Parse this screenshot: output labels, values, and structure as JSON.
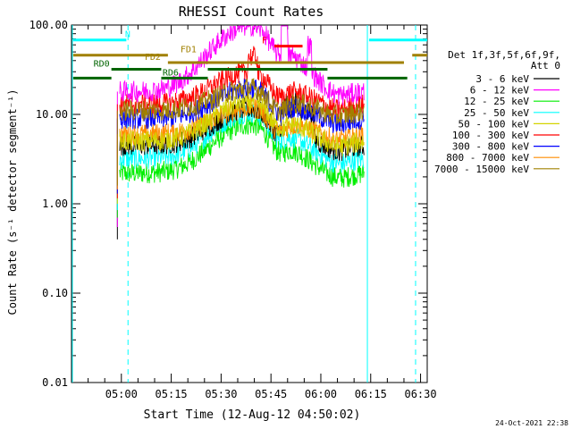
{
  "chart_data": {
    "type": "line",
    "title": "RHESSI Count Rates",
    "xlabel": "Start Time (12-Aug-12 04:50:02)",
    "ylabel": "Count Rate (s⁻¹ detector segment⁻¹)",
    "x_tick_labels": [
      "05:00",
      "05:15",
      "05:30",
      "05:45",
      "06:00",
      "06:15",
      "06:30"
    ],
    "x_tick_minutes": [
      0,
      15,
      30,
      45,
      60,
      75,
      90
    ],
    "y_tick_labels": [
      "0.01",
      "0.10",
      "1.00",
      "10.00",
      "100.00"
    ],
    "ylim": [
      0.01,
      100
    ],
    "y_scale": "log",
    "xlim_minutes": [
      -15.0,
      92.0
    ],
    "legend_title": "Det 1f,3f,5f,6f,9f,\nAtt 0",
    "legend_position": "right",
    "footer_date": "24-Oct-2021 22:38",
    "series": [
      {
        "name": "3 - 6 keV",
        "color": "#000000",
        "base": 4.5,
        "peak": 2.6
      },
      {
        "name": "6 - 12 keV",
        "color": "#ff00ff",
        "base": 18.0,
        "peak": 5.5
      },
      {
        "name": "12 - 25 keV",
        "color": "#00ee00",
        "base": 2.2,
        "peak": 3.5
      },
      {
        "name": "25 - 50 keV",
        "color": "#00ffff",
        "base": 3.2,
        "peak": 3.3
      },
      {
        "name": "50 - 100 keV",
        "color": "#d4d400",
        "base": 5.0,
        "peak": 2.8
      },
      {
        "name": "100 - 300 keV",
        "color": "#ff0000",
        "base": 13.0,
        "peak": 2.3
      },
      {
        "name": "300 - 800 keV",
        "color": "#0000ff",
        "base": 9.0,
        "peak": 2.2
      },
      {
        "name": "800 - 7000 keV",
        "color": "#ff8c00",
        "base": 6.0,
        "peak": 2.0
      },
      {
        "name": "7000 - 15000 keV",
        "color": "#a08000",
        "base": 11.0,
        "peak": 1.8
      }
    ],
    "annotations": {
      "N": {
        "color": "#00ffff",
        "y": 68,
        "segments": [
          [
            -14.5,
            1.5
          ],
          [
            74.5,
            92.0
          ]
        ]
      },
      "FD1": {
        "color": "#a08000",
        "y": 46,
        "segments": [
          [
            -14.5,
            14.0
          ],
          [
            87.5,
            92.0
          ]
        ]
      },
      "FD2": {
        "color": "#a08000",
        "y": 38,
        "segments": [
          [
            14.0,
            85.0
          ]
        ]
      },
      "RD0": {
        "color": "#006400",
        "y": 32,
        "segments": [
          [
            -3.0,
            12.0
          ],
          [
            26.0,
            62.0
          ]
        ]
      },
      "RD6": {
        "color": "#006400",
        "y": 25.5,
        "segments": [
          [
            -14.5,
            -3.0
          ],
          [
            12.0,
            26.0
          ],
          [
            62.0,
            86.0
          ]
        ]
      },
      "F": {
        "color": "#ff0000",
        "y": 58,
        "segments": [
          [
            46.0,
            54.5
          ]
        ]
      }
    },
    "vertical_lines": [
      {
        "x": 2.0,
        "style": "dashed",
        "color": "#00ffff"
      },
      {
        "x": 74.0,
        "style": "solid",
        "color": "#00ffff"
      },
      {
        "x": 88.5,
        "style": "dashed",
        "color": "#00ffff"
      }
    ]
  }
}
